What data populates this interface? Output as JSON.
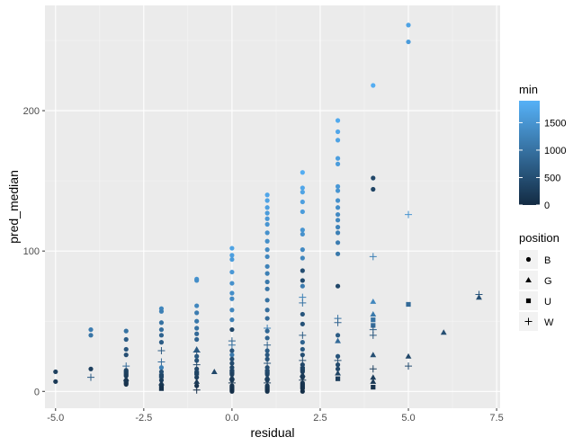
{
  "chart_data": {
    "type": "scatter",
    "xlabel": "residual",
    "ylabel": "pred_median",
    "xlim": [
      -5.3,
      7.6
    ],
    "ylim": [
      -12,
      275
    ],
    "x_ticks": [
      -5.0,
      -2.5,
      0.0,
      2.5,
      5.0,
      7.5
    ],
    "x_tick_labels": [
      "-5.0",
      "-2.5",
      "0.0",
      "2.5",
      "5.0",
      "7.5"
    ],
    "y_ticks": [
      0,
      100,
      200
    ],
    "y_tick_labels": [
      "0",
      "100",
      "200"
    ],
    "grid": true,
    "color_legend": {
      "title": "min",
      "variable": "min",
      "range": [
        0,
        1900
      ],
      "low_color": "#132B43",
      "high_color": "#56B1F7",
      "breaks": [
        0,
        500,
        1000,
        1500
      ],
      "break_labels": [
        "0",
        "500",
        "1000",
        "1500"
      ],
      "placement": "right"
    },
    "shape_legend": {
      "title": "position",
      "entries": [
        {
          "label": "B",
          "shape": "circle"
        },
        {
          "label": "G",
          "shape": "triangle"
        },
        {
          "label": "U",
          "shape": "square"
        },
        {
          "label": "W",
          "shape": "plus"
        }
      ],
      "placement": "right"
    },
    "points": [
      {
        "x": -5,
        "y": 14,
        "pos": "B",
        "min": 300
      },
      {
        "x": -5,
        "y": 7,
        "pos": "B",
        "min": 200
      },
      {
        "x": -4,
        "y": 44,
        "pos": "B",
        "min": 1150
      },
      {
        "x": -4,
        "y": 40,
        "pos": "B",
        "min": 1050
      },
      {
        "x": -4,
        "y": 16,
        "pos": "B",
        "min": 300
      },
      {
        "x": -4,
        "y": 10,
        "pos": "W",
        "min": 700
      },
      {
        "x": -3,
        "y": 43,
        "pos": "B",
        "min": 1000
      },
      {
        "x": -3,
        "y": 37,
        "pos": "B",
        "min": 700
      },
      {
        "x": -3,
        "y": 30,
        "pos": "B",
        "min": 600
      },
      {
        "x": -3,
        "y": 26,
        "pos": "B",
        "min": 500
      },
      {
        "x": -3,
        "y": 18,
        "pos": "W",
        "min": 900
      },
      {
        "x": -3,
        "y": 15,
        "pos": "B",
        "min": 350
      },
      {
        "x": -3,
        "y": 13,
        "pos": "U",
        "min": 300
      },
      {
        "x": -3,
        "y": 11,
        "pos": "B",
        "min": 250
      },
      {
        "x": -3,
        "y": 9,
        "pos": "G",
        "min": 200
      },
      {
        "x": -3,
        "y": 7,
        "pos": "U",
        "min": 150
      },
      {
        "x": -3,
        "y": 5,
        "pos": "B",
        "min": 100
      },
      {
        "x": -2,
        "y": 59,
        "pos": "B",
        "min": 1300
      },
      {
        "x": -2,
        "y": 57,
        "pos": "B",
        "min": 1200
      },
      {
        "x": -2,
        "y": 49,
        "pos": "B",
        "min": 1000
      },
      {
        "x": -2,
        "y": 44,
        "pos": "B",
        "min": 950
      },
      {
        "x": -2,
        "y": 40,
        "pos": "B",
        "min": 800
      },
      {
        "x": -2,
        "y": 35,
        "pos": "B",
        "min": 700
      },
      {
        "x": -2,
        "y": 29,
        "pos": "W",
        "min": 650
      },
      {
        "x": -2,
        "y": 21,
        "pos": "W",
        "min": 900
      },
      {
        "x": -2,
        "y": 17,
        "pos": "B",
        "min": 1200
      },
      {
        "x": -2,
        "y": 14,
        "pos": "B",
        "min": 500
      },
      {
        "x": -2,
        "y": 11,
        "pos": "U",
        "min": 400
      },
      {
        "x": -2,
        "y": 8,
        "pos": "B",
        "min": 300
      },
      {
        "x": -2,
        "y": 6,
        "pos": "G",
        "min": 200
      },
      {
        "x": -2,
        "y": 4,
        "pos": "B",
        "min": 150
      },
      {
        "x": -2,
        "y": 2,
        "pos": "U",
        "min": 100
      },
      {
        "x": -1,
        "y": 80,
        "pos": "B",
        "min": 1500
      },
      {
        "x": -1,
        "y": 79,
        "pos": "B",
        "min": 1400
      },
      {
        "x": -1,
        "y": 61,
        "pos": "B",
        "min": 1300
      },
      {
        "x": -1,
        "y": 56,
        "pos": "B",
        "min": 1150
      },
      {
        "x": -1,
        "y": 50,
        "pos": "B",
        "min": 1100
      },
      {
        "x": -1,
        "y": 45,
        "pos": "B",
        "min": 1000
      },
      {
        "x": -1,
        "y": 41,
        "pos": "B",
        "min": 900
      },
      {
        "x": -1,
        "y": 37,
        "pos": "B",
        "min": 800
      },
      {
        "x": -1,
        "y": 30,
        "pos": "G",
        "min": 700
      },
      {
        "x": -1,
        "y": 28,
        "pos": "W",
        "min": 600
      },
      {
        "x": -1,
        "y": 25,
        "pos": "B",
        "min": 650
      },
      {
        "x": -1,
        "y": 22,
        "pos": "B",
        "min": 550
      },
      {
        "x": -1,
        "y": 19,
        "pos": "W",
        "min": 450
      },
      {
        "x": -1,
        "y": 16,
        "pos": "B",
        "min": 400
      },
      {
        "x": -1,
        "y": 13,
        "pos": "U",
        "min": 350
      },
      {
        "x": -1,
        "y": 10,
        "pos": "B",
        "min": 300
      },
      {
        "x": -1,
        "y": 7,
        "pos": "G",
        "min": 200
      },
      {
        "x": -1,
        "y": 4,
        "pos": "B",
        "min": 120
      },
      {
        "x": -1,
        "y": 1,
        "pos": "W",
        "min": 60
      },
      {
        "x": -0.5,
        "y": 14,
        "pos": "G",
        "min": 400
      },
      {
        "x": 0,
        "y": 102,
        "pos": "B",
        "min": 1700
      },
      {
        "x": 0,
        "y": 97,
        "pos": "B",
        "min": 1650
      },
      {
        "x": 0,
        "y": 94,
        "pos": "B",
        "min": 1600
      },
      {
        "x": 0,
        "y": 85,
        "pos": "B",
        "min": 1550
      },
      {
        "x": 0,
        "y": 77,
        "pos": "B",
        "min": 1450
      },
      {
        "x": 0,
        "y": 70,
        "pos": "B",
        "min": 1400
      },
      {
        "x": 0,
        "y": 66,
        "pos": "B",
        "min": 1350
      },
      {
        "x": 0,
        "y": 58,
        "pos": "B",
        "min": 1300
      },
      {
        "x": 0,
        "y": 51,
        "pos": "B",
        "min": 1200
      },
      {
        "x": 0,
        "y": 44,
        "pos": "B",
        "min": 400
      },
      {
        "x": 0,
        "y": 36,
        "pos": "W",
        "min": 800
      },
      {
        "x": 0,
        "y": 33,
        "pos": "W",
        "min": 1000
      },
      {
        "x": 0,
        "y": 29,
        "pos": "B",
        "min": 600
      },
      {
        "x": 0,
        "y": 26,
        "pos": "B",
        "min": 1100
      },
      {
        "x": 0,
        "y": 23,
        "pos": "B",
        "min": 500
      },
      {
        "x": 0,
        "y": 20,
        "pos": "B",
        "min": 450
      },
      {
        "x": 0,
        "y": 17,
        "pos": "B",
        "min": 400
      },
      {
        "x": 0,
        "y": 14,
        "pos": "U",
        "min": 350
      },
      {
        "x": 0,
        "y": 12,
        "pos": "B",
        "min": 300
      },
      {
        "x": 0,
        "y": 10,
        "pos": "G",
        "min": 250
      },
      {
        "x": 0,
        "y": 8,
        "pos": "B",
        "min": 200
      },
      {
        "x": 0,
        "y": 6,
        "pos": "W",
        "min": 150
      },
      {
        "x": 0,
        "y": 4,
        "pos": "B",
        "min": 120
      },
      {
        "x": 0,
        "y": 2,
        "pos": "U",
        "min": 80
      },
      {
        "x": 0,
        "y": 0,
        "pos": "B",
        "min": 40
      },
      {
        "x": 1,
        "y": 140,
        "pos": "B",
        "min": 1750
      },
      {
        "x": 1,
        "y": 136,
        "pos": "B",
        "min": 1700
      },
      {
        "x": 1,
        "y": 131,
        "pos": "B",
        "min": 1650
      },
      {
        "x": 1,
        "y": 127,
        "pos": "B",
        "min": 1600
      },
      {
        "x": 1,
        "y": 123,
        "pos": "B",
        "min": 1550
      },
      {
        "x": 1,
        "y": 119,
        "pos": "B",
        "min": 1500
      },
      {
        "x": 1,
        "y": 113,
        "pos": "B",
        "min": 1450
      },
      {
        "x": 1,
        "y": 107,
        "pos": "B",
        "min": 1400
      },
      {
        "x": 1,
        "y": 101,
        "pos": "B",
        "min": 1350
      },
      {
        "x": 1,
        "y": 96,
        "pos": "B",
        "min": 1300
      },
      {
        "x": 1,
        "y": 89,
        "pos": "B",
        "min": 1250
      },
      {
        "x": 1,
        "y": 84,
        "pos": "B",
        "min": 1200
      },
      {
        "x": 1,
        "y": 78,
        "pos": "B",
        "min": 1100
      },
      {
        "x": 1,
        "y": 73,
        "pos": "B",
        "min": 1050
      },
      {
        "x": 1,
        "y": 65,
        "pos": "B",
        "min": 1000
      },
      {
        "x": 1,
        "y": 58,
        "pos": "B",
        "min": 950
      },
      {
        "x": 1,
        "y": 52,
        "pos": "B",
        "min": 900
      },
      {
        "x": 1,
        "y": 45,
        "pos": "W",
        "min": 1200
      },
      {
        "x": 1,
        "y": 43,
        "pos": "B",
        "min": 850
      },
      {
        "x": 1,
        "y": 38,
        "pos": "B",
        "min": 800
      },
      {
        "x": 1,
        "y": 33,
        "pos": "W",
        "min": 750
      },
      {
        "x": 1,
        "y": 29,
        "pos": "B",
        "min": 700
      },
      {
        "x": 1,
        "y": 26,
        "pos": "B",
        "min": 650
      },
      {
        "x": 1,
        "y": 23,
        "pos": "B",
        "min": 600
      },
      {
        "x": 1,
        "y": 20,
        "pos": "W",
        "min": 550
      },
      {
        "x": 1,
        "y": 17,
        "pos": "B",
        "min": 500
      },
      {
        "x": 1,
        "y": 14,
        "pos": "U",
        "min": 450
      },
      {
        "x": 1,
        "y": 12,
        "pos": "B",
        "min": 400
      },
      {
        "x": 1,
        "y": 10,
        "pos": "G",
        "min": 350
      },
      {
        "x": 1,
        "y": 8,
        "pos": "B",
        "min": 300
      },
      {
        "x": 1,
        "y": 6,
        "pos": "W",
        "min": 250
      },
      {
        "x": 1,
        "y": 4,
        "pos": "B",
        "min": 200
      },
      {
        "x": 1,
        "y": 2,
        "pos": "U",
        "min": 150
      },
      {
        "x": 1,
        "y": 0,
        "pos": "B",
        "min": 100
      },
      {
        "x": 2,
        "y": 156,
        "pos": "B",
        "min": 1850
      },
      {
        "x": 2,
        "y": 145,
        "pos": "B",
        "min": 1750
      },
      {
        "x": 2,
        "y": 142,
        "pos": "B",
        "min": 1700
      },
      {
        "x": 2,
        "y": 135,
        "pos": "B",
        "min": 1650
      },
      {
        "x": 2,
        "y": 128,
        "pos": "B",
        "min": 1600
      },
      {
        "x": 2,
        "y": 115,
        "pos": "B",
        "min": 1500
      },
      {
        "x": 2,
        "y": 112,
        "pos": "B",
        "min": 1450
      },
      {
        "x": 2,
        "y": 101,
        "pos": "B",
        "min": 1350
      },
      {
        "x": 2,
        "y": 95,
        "pos": "B",
        "min": 1300
      },
      {
        "x": 2,
        "y": 86,
        "pos": "B",
        "min": 500
      },
      {
        "x": 2,
        "y": 79,
        "pos": "B",
        "min": 450
      },
      {
        "x": 2,
        "y": 75,
        "pos": "B",
        "min": 1150
      },
      {
        "x": 2,
        "y": 67,
        "pos": "W",
        "min": 1200
      },
      {
        "x": 2,
        "y": 63,
        "pos": "W",
        "min": 1000
      },
      {
        "x": 2,
        "y": 55,
        "pos": "B",
        "min": 600
      },
      {
        "x": 2,
        "y": 48,
        "pos": "B",
        "min": 550
      },
      {
        "x": 2,
        "y": 40,
        "pos": "W",
        "min": 700
      },
      {
        "x": 2,
        "y": 35,
        "pos": "B",
        "min": 800
      },
      {
        "x": 2,
        "y": 30,
        "pos": "B",
        "min": 650
      },
      {
        "x": 2,
        "y": 26,
        "pos": "B",
        "min": 500
      },
      {
        "x": 2,
        "y": 22,
        "pos": "W",
        "min": 450
      },
      {
        "x": 2,
        "y": 19,
        "pos": "B",
        "min": 400
      },
      {
        "x": 2,
        "y": 16,
        "pos": "U",
        "min": 350
      },
      {
        "x": 2,
        "y": 14,
        "pos": "B",
        "min": 300
      },
      {
        "x": 2,
        "y": 12,
        "pos": "G",
        "min": 250
      },
      {
        "x": 2,
        "y": 10,
        "pos": "B",
        "min": 200
      },
      {
        "x": 2,
        "y": 8,
        "pos": "W",
        "min": 180
      },
      {
        "x": 2,
        "y": 6,
        "pos": "B",
        "min": 150
      },
      {
        "x": 2,
        "y": 4,
        "pos": "U",
        "min": 120
      },
      {
        "x": 2,
        "y": 2,
        "pos": "B",
        "min": 100
      },
      {
        "x": 2,
        "y": 0,
        "pos": "B",
        "min": 50
      },
      {
        "x": 3,
        "y": 193,
        "pos": "B",
        "min": 1800
      },
      {
        "x": 3,
        "y": 185,
        "pos": "B",
        "min": 1750
      },
      {
        "x": 3,
        "y": 179,
        "pos": "B",
        "min": 1700
      },
      {
        "x": 3,
        "y": 166,
        "pos": "B",
        "min": 1650
      },
      {
        "x": 3,
        "y": 162,
        "pos": "B",
        "min": 1600
      },
      {
        "x": 3,
        "y": 146,
        "pos": "B",
        "min": 1550
      },
      {
        "x": 3,
        "y": 143,
        "pos": "B",
        "min": 1500
      },
      {
        "x": 3,
        "y": 136,
        "pos": "B",
        "min": 1450
      },
      {
        "x": 3,
        "y": 131,
        "pos": "B",
        "min": 1400
      },
      {
        "x": 3,
        "y": 126,
        "pos": "B",
        "min": 1350
      },
      {
        "x": 3,
        "y": 122,
        "pos": "B",
        "min": 1300
      },
      {
        "x": 3,
        "y": 117,
        "pos": "B",
        "min": 1250
      },
      {
        "x": 3,
        "y": 113,
        "pos": "B",
        "min": 1200
      },
      {
        "x": 3,
        "y": 106,
        "pos": "B",
        "min": 1150
      },
      {
        "x": 3,
        "y": 98,
        "pos": "B",
        "min": 1100
      },
      {
        "x": 3,
        "y": 75,
        "pos": "B",
        "min": 400
      },
      {
        "x": 3,
        "y": 52,
        "pos": "W",
        "min": 1000
      },
      {
        "x": 3,
        "y": 49,
        "pos": "W",
        "min": 800
      },
      {
        "x": 3,
        "y": 40,
        "pos": "B",
        "min": 700
      },
      {
        "x": 3,
        "y": 36,
        "pos": "G",
        "min": 900
      },
      {
        "x": 3,
        "y": 25,
        "pos": "B",
        "min": 600
      },
      {
        "x": 3,
        "y": 22,
        "pos": "W",
        "min": 500
      },
      {
        "x": 3,
        "y": 19,
        "pos": "B",
        "min": 450
      },
      {
        "x": 3,
        "y": 16,
        "pos": "B",
        "min": 400
      },
      {
        "x": 3,
        "y": 13,
        "pos": "G",
        "min": 350
      },
      {
        "x": 3,
        "y": 9,
        "pos": "U",
        "min": 250
      },
      {
        "x": 4,
        "y": 218,
        "pos": "B",
        "min": 1850
      },
      {
        "x": 4,
        "y": 152,
        "pos": "B",
        "min": 400
      },
      {
        "x": 4,
        "y": 144,
        "pos": "B",
        "min": 350
      },
      {
        "x": 4,
        "y": 96,
        "pos": "W",
        "min": 1200
      },
      {
        "x": 4,
        "y": 64,
        "pos": "G",
        "min": 1300
      },
      {
        "x": 4,
        "y": 55,
        "pos": "G",
        "min": 1100
      },
      {
        "x": 4,
        "y": 51,
        "pos": "U",
        "min": 1000
      },
      {
        "x": 4,
        "y": 47,
        "pos": "U",
        "min": 900
      },
      {
        "x": 4,
        "y": 44,
        "pos": "W",
        "min": 700
      },
      {
        "x": 4,
        "y": 40,
        "pos": "W",
        "min": 600
      },
      {
        "x": 4,
        "y": 26,
        "pos": "G",
        "min": 500
      },
      {
        "x": 4,
        "y": 16,
        "pos": "W",
        "min": 300
      },
      {
        "x": 4,
        "y": 10,
        "pos": "G",
        "min": 250
      },
      {
        "x": 4,
        "y": 7,
        "pos": "G",
        "min": 200
      },
      {
        "x": 4,
        "y": 3,
        "pos": "U",
        "min": 100
      },
      {
        "x": 5,
        "y": 261,
        "pos": "B",
        "min": 1700
      },
      {
        "x": 5,
        "y": 249,
        "pos": "B",
        "min": 1600
      },
      {
        "x": 5,
        "y": 126,
        "pos": "W",
        "min": 1500
      },
      {
        "x": 5,
        "y": 62,
        "pos": "U",
        "min": 900
      },
      {
        "x": 5,
        "y": 25,
        "pos": "G",
        "min": 400
      },
      {
        "x": 5,
        "y": 18,
        "pos": "W",
        "min": 500
      },
      {
        "x": 6,
        "y": 42,
        "pos": "G",
        "min": 500
      },
      {
        "x": 7,
        "y": 69,
        "pos": "W",
        "min": 600
      },
      {
        "x": 7,
        "y": 67,
        "pos": "G",
        "min": 500
      }
    ]
  }
}
